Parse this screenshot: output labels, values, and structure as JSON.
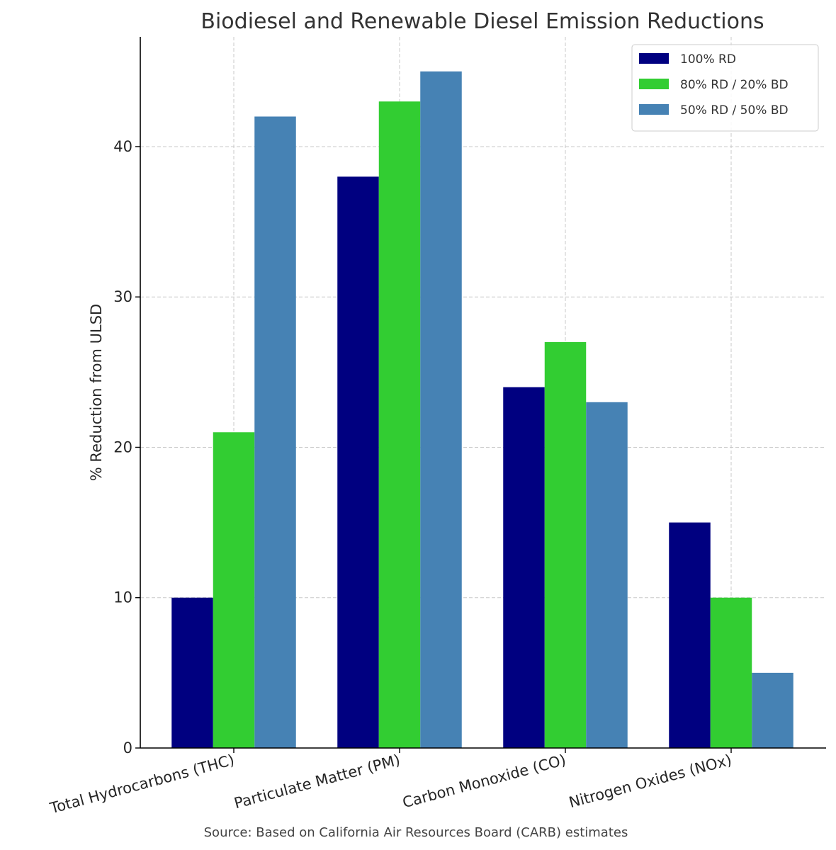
{
  "chart_data": {
    "type": "bar",
    "title": "Biodiesel and Renewable Diesel Emission Reductions",
    "xlabel": "",
    "ylabel": "% Reduction from ULSD",
    "categories": [
      "Total Hydrocarbons (THC)",
      "Particulate Matter (PM)",
      "Carbon Monoxide (CO)",
      "Nitrogen Oxides (NOx)"
    ],
    "series": [
      {
        "name": "100% RD",
        "color": "#000080",
        "values": [
          10,
          38,
          24,
          15
        ]
      },
      {
        "name": "80% RD / 20% BD",
        "color": "#32cd32",
        "values": [
          21,
          43,
          27,
          10
        ]
      },
      {
        "name": "50% RD / 50% BD",
        "color": "#4682b4",
        "values": [
          42,
          45,
          23,
          5
        ]
      }
    ],
    "ylim": [
      0,
      47.3
    ],
    "yticks": [
      0,
      10,
      20,
      30,
      40
    ],
    "grid": true,
    "legend_position": "top-right",
    "source": "Source: Based on California Air Resources Board (CARB) estimates"
  }
}
